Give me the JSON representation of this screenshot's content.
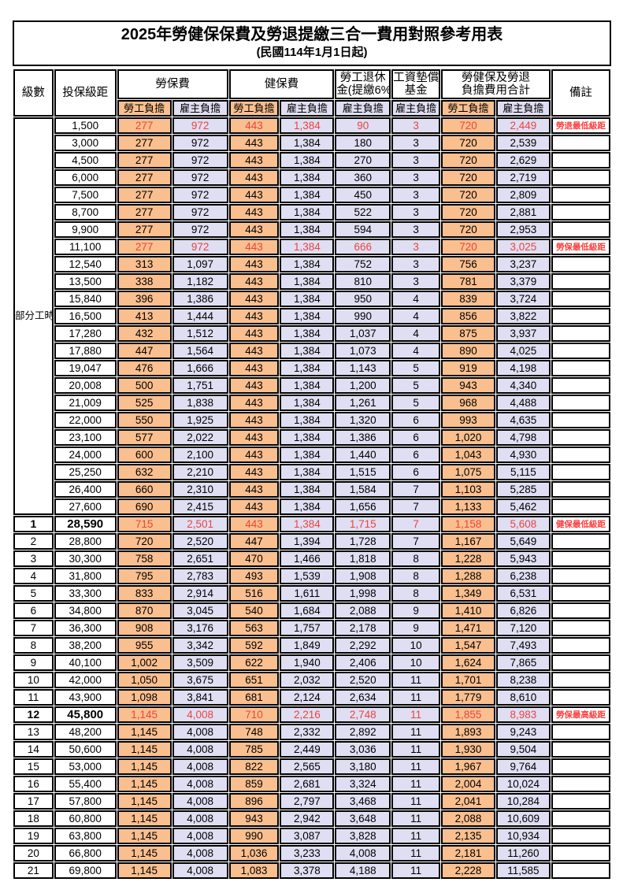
{
  "title": "2025年勞健保保費及勞退提繳三合一費用對照參考用表",
  "subtitle": "(民國114年1月1日起)",
  "colors": {
    "employee_bg": "#FABF8F",
    "employer_bg": "#E0DEF2",
    "highlight_value": "#e8453f",
    "remark_red": "#ff3d3d",
    "border": "#000000"
  },
  "header": {
    "level": "級數",
    "bracket": "投保級距",
    "labor_insurance": "勞保費",
    "health_insurance": "健保費",
    "pension_line1": "勞工退休",
    "pension_line2": "金(提繳6%)",
    "wage_fund_line1": "工資墊償",
    "wage_fund_line2": "基金",
    "total_line1": "勞健保及勞退",
    "total_line2": "負擔費用合計",
    "remark": "備註",
    "employee": "勞工負擔",
    "employer": "雇主負擔"
  },
  "part_time_label": "部分工時",
  "value_columns": [
    "labor-employee",
    "labor-employer",
    "health-employee",
    "health-employer",
    "pension-employer",
    "wage-fund-employer",
    "total-employee",
    "total-employer"
  ],
  "value_col_bg": [
    "emp",
    "er",
    "emp",
    "er",
    "er",
    "er",
    "emp",
    "er"
  ],
  "rows": [
    {
      "l": "",
      "b": "1,500",
      "v": [
        "277",
        "972",
        "443",
        "1,384",
        "90",
        "3",
        "720",
        "2,449"
      ],
      "r": "勞退最低級距",
      "hl": true,
      "bd": false
    },
    {
      "l": "",
      "b": "3,000",
      "v": [
        "277",
        "972",
        "443",
        "1,384",
        "180",
        "3",
        "720",
        "2,539"
      ],
      "r": "",
      "hl": false,
      "bd": false
    },
    {
      "l": "",
      "b": "4,500",
      "v": [
        "277",
        "972",
        "443",
        "1,384",
        "270",
        "3",
        "720",
        "2,629"
      ],
      "r": "",
      "hl": false,
      "bd": false
    },
    {
      "l": "",
      "b": "6,000",
      "v": [
        "277",
        "972",
        "443",
        "1,384",
        "360",
        "3",
        "720",
        "2,719"
      ],
      "r": "",
      "hl": false,
      "bd": false
    },
    {
      "l": "",
      "b": "7,500",
      "v": [
        "277",
        "972",
        "443",
        "1,384",
        "450",
        "3",
        "720",
        "2,809"
      ],
      "r": "",
      "hl": false,
      "bd": false
    },
    {
      "l": "",
      "b": "8,700",
      "v": [
        "277",
        "972",
        "443",
        "1,384",
        "522",
        "3",
        "720",
        "2,881"
      ],
      "r": "",
      "hl": false,
      "bd": false
    },
    {
      "l": "",
      "b": "9,900",
      "v": [
        "277",
        "972",
        "443",
        "1,384",
        "594",
        "3",
        "720",
        "2,953"
      ],
      "r": "",
      "hl": false,
      "bd": false
    },
    {
      "l": "",
      "b": "11,100",
      "v": [
        "277",
        "972",
        "443",
        "1,384",
        "666",
        "3",
        "720",
        "3,025"
      ],
      "r": "勞保最低級距",
      "hl": true,
      "bd": false
    },
    {
      "l": "",
      "b": "12,540",
      "v": [
        "313",
        "1,097",
        "443",
        "1,384",
        "752",
        "3",
        "756",
        "3,237"
      ],
      "r": "",
      "hl": false,
      "bd": false
    },
    {
      "l": "",
      "b": "13,500",
      "v": [
        "338",
        "1,182",
        "443",
        "1,384",
        "810",
        "3",
        "781",
        "3,379"
      ],
      "r": "",
      "hl": false,
      "bd": false
    },
    {
      "l": "",
      "b": "15,840",
      "v": [
        "396",
        "1,386",
        "443",
        "1,384",
        "950",
        "4",
        "839",
        "3,724"
      ],
      "r": "",
      "hl": false,
      "bd": false
    },
    {
      "l": "",
      "b": "16,500",
      "v": [
        "413",
        "1,444",
        "443",
        "1,384",
        "990",
        "4",
        "856",
        "3,822"
      ],
      "r": "",
      "hl": false,
      "bd": false
    },
    {
      "l": "",
      "b": "17,280",
      "v": [
        "432",
        "1,512",
        "443",
        "1,384",
        "1,037",
        "4",
        "875",
        "3,937"
      ],
      "r": "",
      "hl": false,
      "bd": false
    },
    {
      "l": "",
      "b": "17,880",
      "v": [
        "447",
        "1,564",
        "443",
        "1,384",
        "1,073",
        "4",
        "890",
        "4,025"
      ],
      "r": "",
      "hl": false,
      "bd": false
    },
    {
      "l": "",
      "b": "19,047",
      "v": [
        "476",
        "1,666",
        "443",
        "1,384",
        "1,143",
        "5",
        "919",
        "4,198"
      ],
      "r": "",
      "hl": false,
      "bd": false
    },
    {
      "l": "",
      "b": "20,008",
      "v": [
        "500",
        "1,751",
        "443",
        "1,384",
        "1,200",
        "5",
        "943",
        "4,340"
      ],
      "r": "",
      "hl": false,
      "bd": false
    },
    {
      "l": "",
      "b": "21,009",
      "v": [
        "525",
        "1,838",
        "443",
        "1,384",
        "1,261",
        "5",
        "968",
        "4,488"
      ],
      "r": "",
      "hl": false,
      "bd": false
    },
    {
      "l": "",
      "b": "22,000",
      "v": [
        "550",
        "1,925",
        "443",
        "1,384",
        "1,320",
        "6",
        "993",
        "4,635"
      ],
      "r": "",
      "hl": false,
      "bd": false
    },
    {
      "l": "",
      "b": "23,100",
      "v": [
        "577",
        "2,022",
        "443",
        "1,384",
        "1,386",
        "6",
        "1,020",
        "4,798"
      ],
      "r": "",
      "hl": false,
      "bd": false
    },
    {
      "l": "",
      "b": "24,000",
      "v": [
        "600",
        "2,100",
        "443",
        "1,384",
        "1,440",
        "6",
        "1,043",
        "4,930"
      ],
      "r": "",
      "hl": false,
      "bd": false
    },
    {
      "l": "",
      "b": "25,250",
      "v": [
        "632",
        "2,210",
        "443",
        "1,384",
        "1,515",
        "6",
        "1,075",
        "5,115"
      ],
      "r": "",
      "hl": false,
      "bd": false
    },
    {
      "l": "",
      "b": "26,400",
      "v": [
        "660",
        "2,310",
        "443",
        "1,384",
        "1,584",
        "7",
        "1,103",
        "5,285"
      ],
      "r": "",
      "hl": false,
      "bd": false
    },
    {
      "l": "",
      "b": "27,600",
      "v": [
        "690",
        "2,415",
        "443",
        "1,384",
        "1,656",
        "7",
        "1,133",
        "5,462"
      ],
      "r": "",
      "hl": false,
      "bd": false
    },
    {
      "l": "1",
      "b": "28,590",
      "v": [
        "715",
        "2,501",
        "443",
        "1,384",
        "1,715",
        "7",
        "1,158",
        "5,608"
      ],
      "r": "健保最低級距",
      "hl": true,
      "bd": true
    },
    {
      "l": "2",
      "b": "28,800",
      "v": [
        "720",
        "2,520",
        "447",
        "1,394",
        "1,728",
        "7",
        "1,167",
        "5,649"
      ],
      "r": "",
      "hl": false,
      "bd": false
    },
    {
      "l": "3",
      "b": "30,300",
      "v": [
        "758",
        "2,651",
        "470",
        "1,466",
        "1,818",
        "8",
        "1,228",
        "5,943"
      ],
      "r": "",
      "hl": false,
      "bd": false
    },
    {
      "l": "4",
      "b": "31,800",
      "v": [
        "795",
        "2,783",
        "493",
        "1,539",
        "1,908",
        "8",
        "1,288",
        "6,238"
      ],
      "r": "",
      "hl": false,
      "bd": false
    },
    {
      "l": "5",
      "b": "33,300",
      "v": [
        "833",
        "2,914",
        "516",
        "1,611",
        "1,998",
        "8",
        "1,349",
        "6,531"
      ],
      "r": "",
      "hl": false,
      "bd": false
    },
    {
      "l": "6",
      "b": "34,800",
      "v": [
        "870",
        "3,045",
        "540",
        "1,684",
        "2,088",
        "9",
        "1,410",
        "6,826"
      ],
      "r": "",
      "hl": false,
      "bd": false
    },
    {
      "l": "7",
      "b": "36,300",
      "v": [
        "908",
        "3,176",
        "563",
        "1,757",
        "2,178",
        "9",
        "1,471",
        "7,120"
      ],
      "r": "",
      "hl": false,
      "bd": false
    },
    {
      "l": "8",
      "b": "38,200",
      "v": [
        "955",
        "3,342",
        "592",
        "1,849",
        "2,292",
        "10",
        "1,547",
        "7,493"
      ],
      "r": "",
      "hl": false,
      "bd": false
    },
    {
      "l": "9",
      "b": "40,100",
      "v": [
        "1,002",
        "3,509",
        "622",
        "1,940",
        "2,406",
        "10",
        "1,624",
        "7,865"
      ],
      "r": "",
      "hl": false,
      "bd": false
    },
    {
      "l": "10",
      "b": "42,000",
      "v": [
        "1,050",
        "3,675",
        "651",
        "2,032",
        "2,520",
        "11",
        "1,701",
        "8,238"
      ],
      "r": "",
      "hl": false,
      "bd": false
    },
    {
      "l": "11",
      "b": "43,900",
      "v": [
        "1,098",
        "3,841",
        "681",
        "2,124",
        "2,634",
        "11",
        "1,779",
        "8,610"
      ],
      "r": "",
      "hl": false,
      "bd": false
    },
    {
      "l": "12",
      "b": "45,800",
      "v": [
        "1,145",
        "4,008",
        "710",
        "2,216",
        "2,748",
        "11",
        "1,855",
        "8,983"
      ],
      "r": "勞保最高級距",
      "hl": true,
      "bd": true
    },
    {
      "l": "13",
      "b": "48,200",
      "v": [
        "1,145",
        "4,008",
        "748",
        "2,332",
        "2,892",
        "11",
        "1,893",
        "9,243"
      ],
      "r": "",
      "hl": false,
      "bd": false
    },
    {
      "l": "14",
      "b": "50,600",
      "v": [
        "1,145",
        "4,008",
        "785",
        "2,449",
        "3,036",
        "11",
        "1,930",
        "9,504"
      ],
      "r": "",
      "hl": false,
      "bd": false
    },
    {
      "l": "15",
      "b": "53,000",
      "v": [
        "1,145",
        "4,008",
        "822",
        "2,565",
        "3,180",
        "11",
        "1,967",
        "9,764"
      ],
      "r": "",
      "hl": false,
      "bd": false
    },
    {
      "l": "16",
      "b": "55,400",
      "v": [
        "1,145",
        "4,008",
        "859",
        "2,681",
        "3,324",
        "11",
        "2,004",
        "10,024"
      ],
      "r": "",
      "hl": false,
      "bd": false
    },
    {
      "l": "17",
      "b": "57,800",
      "v": [
        "1,145",
        "4,008",
        "896",
        "2,797",
        "3,468",
        "11",
        "2,041",
        "10,284"
      ],
      "r": "",
      "hl": false,
      "bd": false
    },
    {
      "l": "18",
      "b": "60,800",
      "v": [
        "1,145",
        "4,008",
        "943",
        "2,942",
        "3,648",
        "11",
        "2,088",
        "10,609"
      ],
      "r": "",
      "hl": false,
      "bd": false
    },
    {
      "l": "19",
      "b": "63,800",
      "v": [
        "1,145",
        "4,008",
        "990",
        "3,087",
        "3,828",
        "11",
        "2,135",
        "10,934"
      ],
      "r": "",
      "hl": false,
      "bd": false
    },
    {
      "l": "20",
      "b": "66,800",
      "v": [
        "1,145",
        "4,008",
        "1,036",
        "3,233",
        "4,008",
        "11",
        "2,181",
        "11,260"
      ],
      "r": "",
      "hl": false,
      "bd": false
    },
    {
      "l": "21",
      "b": "69,800",
      "v": [
        "1,145",
        "4,008",
        "1,083",
        "3,378",
        "4,188",
        "11",
        "2,228",
        "11,585"
      ],
      "r": "",
      "hl": false,
      "bd": false
    }
  ]
}
